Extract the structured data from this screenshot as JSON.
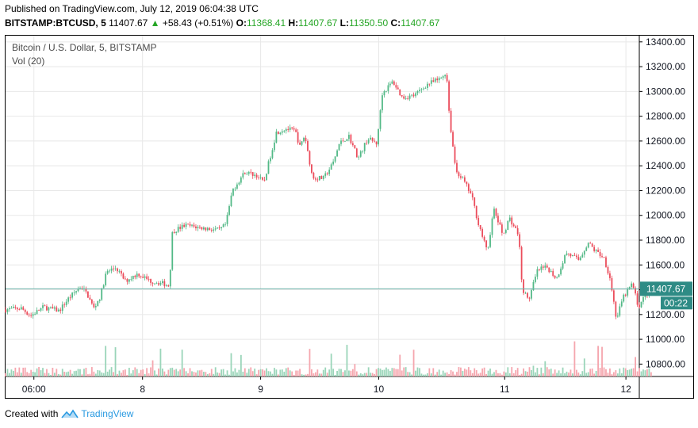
{
  "header": {
    "published": "Published on TradingView.com, July 12, 2019 06:04:38 UTC",
    "symbol": "BITSTAMP:BTCUSD, 5",
    "last": "11407.67",
    "change": "+58.43 (+0.51%)",
    "o_label": "O:",
    "o_value": "11368.41",
    "h_label": "H:",
    "h_value": "11407.67",
    "l_label": "L:",
    "l_value": "11350.50",
    "c_label": "C:",
    "c_value": "11407.67"
  },
  "legend": {
    "title": "Bitcoin / U.S. Dollar, 5, BITSTAMP",
    "volume": "Vol (20)"
  },
  "price_tag": {
    "price": "11407.67",
    "countdown": "00:22",
    "value": 11407.67
  },
  "footer": {
    "created_with": "Created with",
    "brand": "TradingView"
  },
  "colors": {
    "up": "#53b987",
    "down": "#eb4d5c",
    "vol_up": "#9ad5b9",
    "vol_down": "#f5a6ae",
    "price_line": "#6fb5ad",
    "tag": "#2e8b85",
    "grid": "#e8e8e8"
  },
  "chart_data": {
    "type": "candlestick",
    "title": "Bitcoin / U.S. Dollar, 5, BITSTAMP",
    "ylim": [
      10700,
      13450
    ],
    "y_ticks": [
      "13400.00",
      "13200.00",
      "13000.00",
      "12800.00",
      "12600.00",
      "12400.00",
      "12200.00",
      "12000.00",
      "11800.00",
      "11600.00",
      "11400.00",
      "11200.00",
      "11000.00",
      "10800.00"
    ],
    "x_ticks": [
      {
        "label": "06:00",
        "t": 0.9
      },
      {
        "label": "8",
        "t": 4.35
      },
      {
        "label": "9",
        "t": 8.1
      },
      {
        "label": "10",
        "t": 11.85
      },
      {
        "label": "11",
        "t": 15.85
      },
      {
        "label": "12",
        "t": 19.7
      }
    ],
    "t_range": [
      0,
      20.1
    ],
    "trend": [
      [
        0,
        11240
      ],
      [
        0.5,
        11250
      ],
      [
        0.8,
        11190
      ],
      [
        1.2,
        11260
      ],
      [
        1.7,
        11230
      ],
      [
        2.0,
        11330
      ],
      [
        2.4,
        11430
      ],
      [
        2.6,
        11360
      ],
      [
        2.8,
        11250
      ],
      [
        3.0,
        11340
      ],
      [
        3.2,
        11540
      ],
      [
        3.5,
        11580
      ],
      [
        3.8,
        11470
      ],
      [
        4.2,
        11530
      ],
      [
        4.6,
        11470
      ],
      [
        5.0,
        11450
      ],
      [
        5.2,
        11430
      ],
      [
        5.3,
        11870
      ],
      [
        5.7,
        11920
      ],
      [
        6.2,
        11900
      ],
      [
        6.8,
        11880
      ],
      [
        7.0,
        11930
      ],
      [
        7.2,
        12200
      ],
      [
        7.6,
        12350
      ],
      [
        8.0,
        12320
      ],
      [
        8.2,
        12260
      ],
      [
        8.4,
        12470
      ],
      [
        8.6,
        12670
      ],
      [
        8.9,
        12700
      ],
      [
        9.2,
        12680
      ],
      [
        9.35,
        12550
      ],
      [
        9.5,
        12650
      ],
      [
        9.75,
        12300
      ],
      [
        10.1,
        12300
      ],
      [
        10.4,
        12420
      ],
      [
        10.6,
        12580
      ],
      [
        10.9,
        12640
      ],
      [
        11.2,
        12460
      ],
      [
        11.5,
        12620
      ],
      [
        11.8,
        12580
      ],
      [
        11.95,
        12980
      ],
      [
        12.3,
        13080
      ],
      [
        12.6,
        12950
      ],
      [
        13.0,
        12970
      ],
      [
        13.4,
        13060
      ],
      [
        13.8,
        13100
      ],
      [
        14.0,
        13160
      ],
      [
        14.1,
        12780
      ],
      [
        14.3,
        12360
      ],
      [
        14.5,
        12300
      ],
      [
        14.8,
        12160
      ],
      [
        15.0,
        11950
      ],
      [
        15.3,
        11700
      ],
      [
        15.5,
        12050
      ],
      [
        15.8,
        11840
      ],
      [
        16.0,
        11980
      ],
      [
        16.3,
        11840
      ],
      [
        16.4,
        11420
      ],
      [
        16.6,
        11310
      ],
      [
        16.9,
        11560
      ],
      [
        17.2,
        11580
      ],
      [
        17.5,
        11490
      ],
      [
        17.8,
        11700
      ],
      [
        18.2,
        11640
      ],
      [
        18.5,
        11780
      ],
      [
        18.7,
        11720
      ],
      [
        19.0,
        11660
      ],
      [
        19.2,
        11490
      ],
      [
        19.4,
        11160
      ],
      [
        19.6,
        11330
      ],
      [
        19.9,
        11450
      ],
      [
        20.1,
        11260
      ],
      [
        20.3,
        11350
      ],
      [
        20.5,
        11407.67
      ]
    ]
  }
}
